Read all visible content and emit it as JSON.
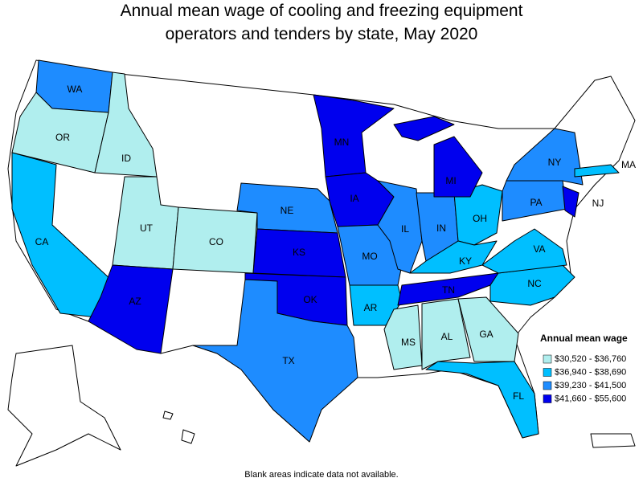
{
  "title": [
    "Annual mean wage of cooling and freezing equipment",
    "operators and tenders by state, May 2020"
  ],
  "legend": {
    "title": "Annual mean wage",
    "items": [
      {
        "label": "$30,520 - $36,760",
        "color": "#b0eeee"
      },
      {
        "label": "$36,940 - $38,690",
        "color": "#00bfff"
      },
      {
        "label": "$39,230 - $41,500",
        "color": "#1e8cff"
      },
      {
        "label": "$41,660 - $55,600",
        "color": "#0000ee"
      }
    ]
  },
  "states": [
    {
      "abbr": "WA",
      "class": 2
    },
    {
      "abbr": "OR",
      "class": 0
    },
    {
      "abbr": "CA",
      "class": 1
    },
    {
      "abbr": "ID",
      "class": 0
    },
    {
      "abbr": "UT",
      "class": 0
    },
    {
      "abbr": "CO",
      "class": 0
    },
    {
      "abbr": "AZ",
      "class": 3
    },
    {
      "abbr": "NE",
      "class": 2
    },
    {
      "abbr": "KS",
      "class": 3
    },
    {
      "abbr": "OK",
      "class": 3
    },
    {
      "abbr": "TX",
      "class": 2
    },
    {
      "abbr": "MN",
      "class": 3
    },
    {
      "abbr": "IA",
      "class": 3
    },
    {
      "abbr": "MO",
      "class": 2
    },
    {
      "abbr": "AR",
      "class": 1
    },
    {
      "abbr": "IL",
      "class": 2
    },
    {
      "abbr": "IN",
      "class": 2
    },
    {
      "abbr": "OH",
      "class": 1
    },
    {
      "abbr": "KY",
      "class": 1
    },
    {
      "abbr": "TN",
      "class": 3
    },
    {
      "abbr": "MS",
      "class": 0
    },
    {
      "abbr": "AL",
      "class": 0
    },
    {
      "abbr": "GA",
      "class": 0
    },
    {
      "abbr": "FL",
      "class": 1
    },
    {
      "abbr": "NC",
      "class": 1
    },
    {
      "abbr": "VA",
      "class": 1
    },
    {
      "abbr": "MI",
      "class": 3
    },
    {
      "abbr": "NY",
      "class": 2
    },
    {
      "abbr": "PA",
      "class": 2
    },
    {
      "abbr": "NJ",
      "class": 3
    },
    {
      "abbr": "MA",
      "class": 1
    }
  ],
  "footnote": "Blank areas indicate data not available."
}
